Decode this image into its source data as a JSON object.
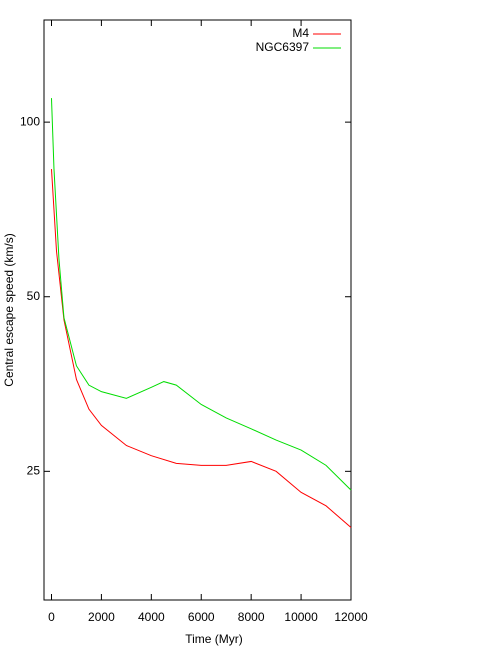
{
  "chart_data": {
    "type": "line",
    "xlabel": "Time (Myr)",
    "ylabel": "Central escape speed (km/s)",
    "log_y": true,
    "legend": "top-right",
    "xlim": [
      -300,
      12000
    ],
    "xticks": [
      0,
      2000,
      4000,
      6000,
      8000,
      10000,
      12000
    ],
    "ylim": [
      15,
      150
    ],
    "yticks": [
      25,
      50,
      100
    ],
    "series": [
      {
        "name": "M4",
        "color": "#ff0000",
        "x": [
          0,
          200,
          500,
          1000,
          1500,
          2000,
          3000,
          4000,
          5000,
          6000,
          7000,
          8000,
          9000,
          10000,
          11000,
          12000
        ],
        "values": [
          83,
          60,
          45.6,
          36,
          32,
          30,
          27.7,
          26.6,
          25.8,
          25.6,
          25.6,
          26,
          25,
          23,
          21.8,
          20
        ]
      },
      {
        "name": "NGC6397",
        "color": "#00dd00",
        "x": [
          0,
          100,
          300,
          500,
          1000,
          1500,
          2000,
          3000,
          4000,
          4500,
          5000,
          6000,
          7000,
          8000,
          9000,
          10000,
          11000,
          12000
        ],
        "values": [
          110,
          83,
          58,
          46,
          38,
          35.2,
          34.3,
          33.4,
          34.9,
          35.7,
          35.2,
          32.6,
          30.9,
          29.6,
          28.3,
          27.2,
          25.6,
          23.2
        ]
      }
    ]
  }
}
